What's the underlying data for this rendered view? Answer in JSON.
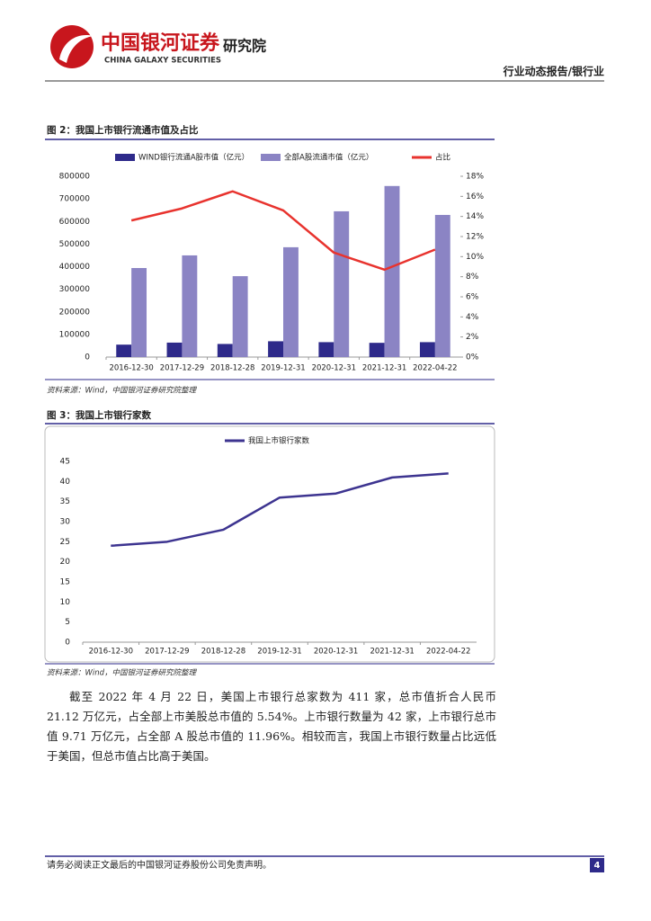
{
  "header": {
    "logo_cn": "中国银河证券",
    "logo_en": "CHINA GALAXY SECURITIES",
    "institute": "研究院",
    "report_type": "行业动态报告/银行业"
  },
  "chart_data": [
    {
      "type": "bar",
      "title": "图 2：我国上市银行流通市值及占比",
      "source": "资料来源：Wind，中国银河证券研究院整理",
      "categories": [
        "2016-12-30",
        "2017-12-29",
        "2018-12-28",
        "2019-12-31",
        "2020-12-31",
        "2021-12-31",
        "2022-04-22"
      ],
      "series": [
        {
          "name": "WIND银行流通A股市值（亿元）",
          "color": "#2e2a8a",
          "values": [
            55000,
            64000,
            58000,
            70000,
            66000,
            63000,
            66000
          ]
        },
        {
          "name": "全部A股流通市值（亿元）",
          "color": "#8b84c4",
          "values": [
            394000,
            450000,
            358000,
            486000,
            645000,
            757000,
            629000
          ]
        },
        {
          "name": "占比",
          "color": "#e8332e",
          "type": "line",
          "axis": "y2",
          "values": [
            13.6,
            14.8,
            16.5,
            14.6,
            10.4,
            8.7,
            10.7
          ]
        }
      ],
      "ylim": [
        0,
        800000
      ],
      "yticks": [
        0,
        100000,
        200000,
        300000,
        400000,
        500000,
        600000,
        700000,
        800000
      ],
      "y2lim": [
        0,
        18
      ],
      "y2ticks": [
        {
          "value": 0,
          "label": "0%"
        },
        {
          "value": 2,
          "label": "2%"
        },
        {
          "value": 4,
          "label": "4%"
        },
        {
          "value": 6,
          "label": "6%"
        },
        {
          "value": 8,
          "label": "8%"
        },
        {
          "value": 10,
          "label": "10%"
        },
        {
          "value": 12,
          "label": "12%"
        },
        {
          "value": 14,
          "label": "14%"
        },
        {
          "value": 16,
          "label": "16%"
        },
        {
          "value": 18,
          "label": "18%"
        }
      ],
      "grid": false,
      "legend": "top"
    },
    {
      "type": "line",
      "title": "图 3：我国上市银行家数",
      "source": "资料来源：Wind，中国银河证券研究院整理",
      "categories": [
        "2016-12-30",
        "2017-12-29",
        "2018-12-28",
        "2019-12-31",
        "2020-12-31",
        "2021-12-31",
        "2022-04-22"
      ],
      "series": [
        {
          "name": "我国上市银行家数",
          "color": "#3d3490",
          "values": [
            24,
            25,
            28,
            36,
            37,
            41,
            42
          ]
        }
      ],
      "ylim": [
        0,
        45
      ],
      "yticks": [
        0,
        5,
        10,
        15,
        20,
        25,
        30,
        35,
        40,
        45
      ],
      "grid": false,
      "legend": "top"
    }
  ],
  "body": {
    "paragraph": "截至 2022 年 4 月 22 日，美国上市银行总家数为 411 家，总市值折合人民币 21.12 万亿元，占全部上市美股总市值的 5.54%。上市银行数量为 42 家，上市银行总市值 9.71 万亿元，占全部 A 股总市值的 11.96%。相较而言，我国上市银行数量占比远低于美国，但总市值占比高于美国。"
  },
  "footer": {
    "disclaimer": "请务必阅读正文最后的中国银河证券股份公司免责声明。",
    "page": "4"
  }
}
